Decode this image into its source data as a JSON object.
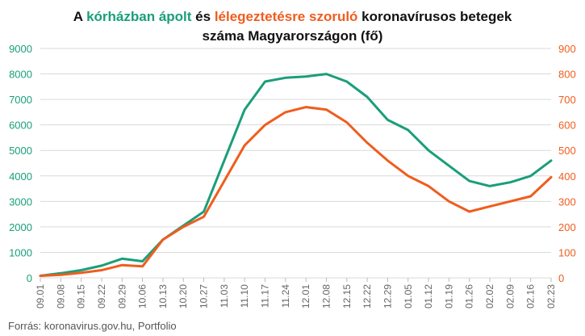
{
  "title": {
    "line1_prefix": "A ",
    "line1_hi_left": "kórházban ápolt",
    "line1_mid": " és ",
    "line1_hi_right": "lélegeztetésre szoruló",
    "line1_suffix": " koronavírusos betegek",
    "line2": "száma Magyarországon  (fő)"
  },
  "source": "Forrás: koronavirus.gov.hu, Portfolio",
  "colors": {
    "left": "#1a9e7a",
    "right": "#ef5d1e",
    "grid": "#d9d9d9",
    "tick_text": "#666666"
  },
  "chart_data": {
    "type": "line",
    "title": "A kórházban ápolt és lélegeztetésre szoruló koronavírusos betegek száma Magyarországon  (fő)",
    "xlabel": "",
    "ylabel": "",
    "legend": "none",
    "grid": true,
    "x_labels": [
      "09.01",
      "09.08",
      "09.15",
      "09.22",
      "09.29",
      "10.06",
      "10.13",
      "10.20",
      "10.27",
      "11.03",
      "11.10",
      "11.17",
      "11.24",
      "12.01",
      "12.08",
      "12.15",
      "12.22",
      "12.29",
      "01.05",
      "01.12",
      "01.19",
      "01.26",
      "02.02",
      "02.09",
      "02.16",
      "02.23"
    ],
    "y_left": {
      "min": 0,
      "max": 9000,
      "ticks": [
        0,
        1000,
        2000,
        3000,
        4000,
        5000,
        6000,
        7000,
        8000,
        9000
      ]
    },
    "y_right": {
      "min": 0,
      "max": 900,
      "ticks": [
        0,
        100,
        200,
        300,
        400,
        500,
        600,
        700,
        800,
        900
      ]
    },
    "series": [
      {
        "name": "kórházban ápolt",
        "axis": "left",
        "color": "#1a9e7a",
        "values": [
          80,
          180,
          300,
          480,
          750,
          650,
          1500,
          2050,
          2600,
          4600,
          6600,
          7700,
          7850,
          7900,
          8000,
          7700,
          7100,
          6200,
          5800,
          5000,
          4400,
          3800,
          3600,
          3750,
          4000,
          4600
        ]
      },
      {
        "name": "lélegeztetésre szoruló",
        "axis": "right",
        "color": "#ef5d1e",
        "values": [
          8,
          12,
          20,
          30,
          50,
          45,
          150,
          200,
          240,
          380,
          520,
          600,
          650,
          670,
          660,
          610,
          530,
          460,
          400,
          360,
          300,
          260,
          280,
          300,
          320,
          395
        ]
      }
    ]
  }
}
